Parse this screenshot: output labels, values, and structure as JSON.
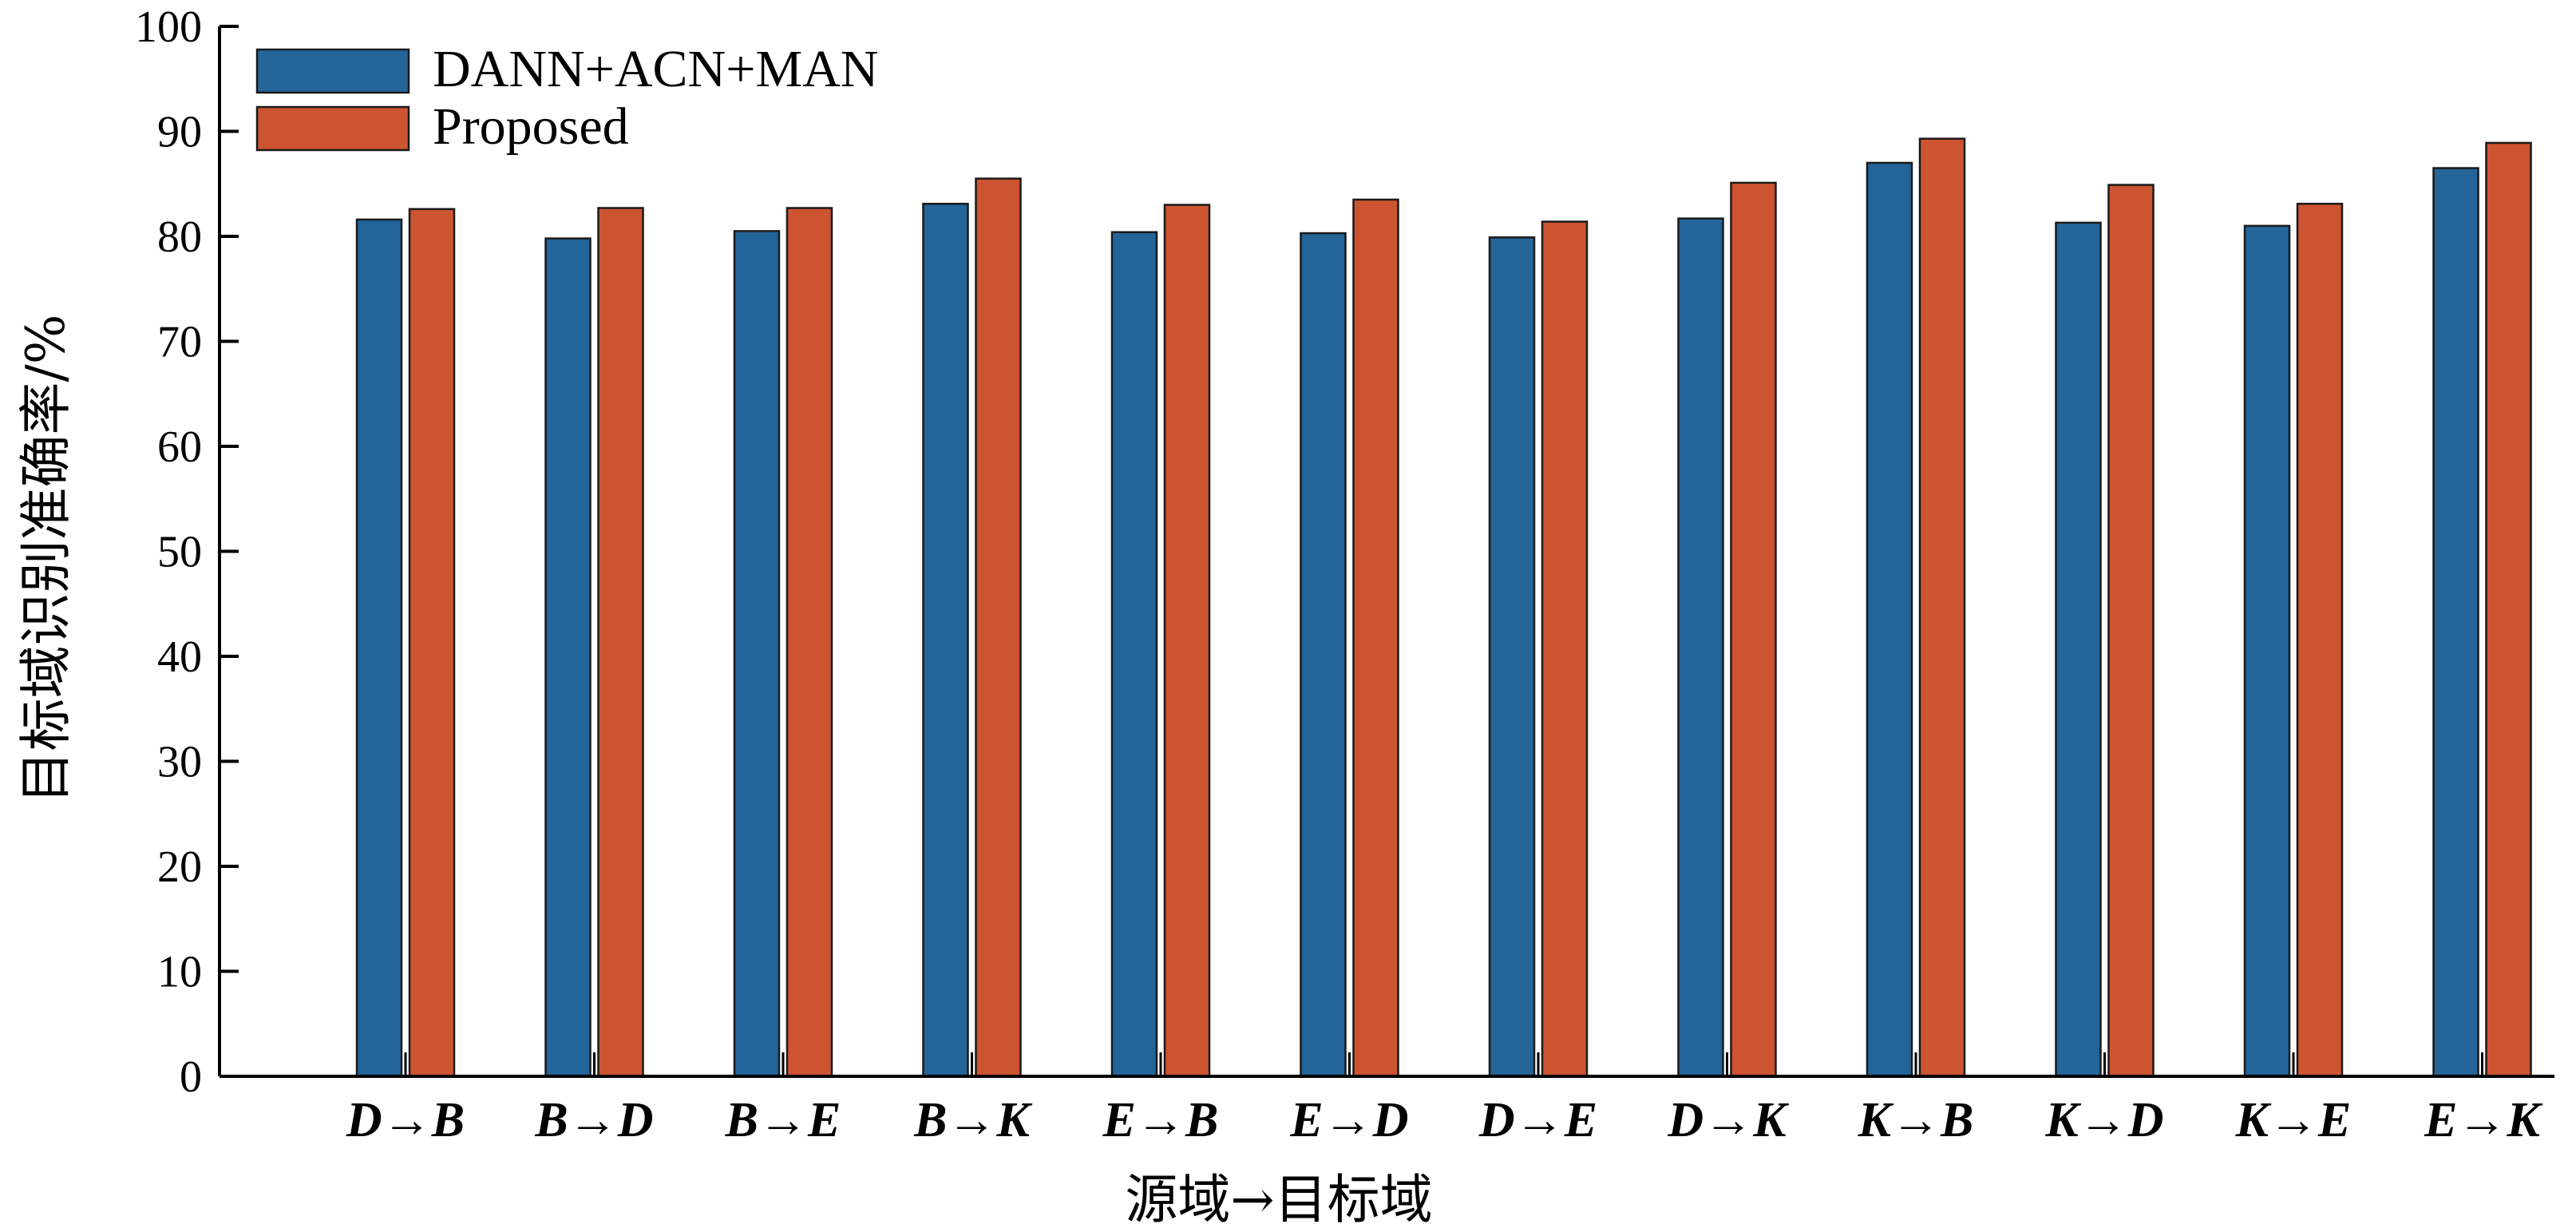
{
  "chart_data": {
    "type": "bar",
    "categories": [
      "D→B",
      "B→D",
      "B→E",
      "B→K",
      "E→B",
      "E→D",
      "D→E",
      "D→K",
      "K→B",
      "K→D",
      "K→E",
      "E→K"
    ],
    "series": [
      {
        "name": "DANN+ACN+MAN",
        "color": "#236499",
        "values": [
          81.6,
          79.8,
          80.5,
          83.1,
          80.4,
          80.3,
          79.9,
          81.7,
          87.0,
          81.3,
          81.0,
          86.5
        ]
      },
      {
        "name": "Proposed",
        "color": "#cc5430",
        "values": [
          82.6,
          82.7,
          82.7,
          85.5,
          83.0,
          83.5,
          81.4,
          85.1,
          89.3,
          84.9,
          83.1,
          88.9
        ]
      }
    ],
    "xlabel": "源域→目标域",
    "ylabel": "目标域识别准确率/%",
    "ylim": [
      0,
      100
    ],
    "yticks": [
      0,
      10,
      20,
      30,
      40,
      50,
      60,
      70,
      80,
      90,
      100
    ],
    "grid": false,
    "legend": "top-left"
  }
}
